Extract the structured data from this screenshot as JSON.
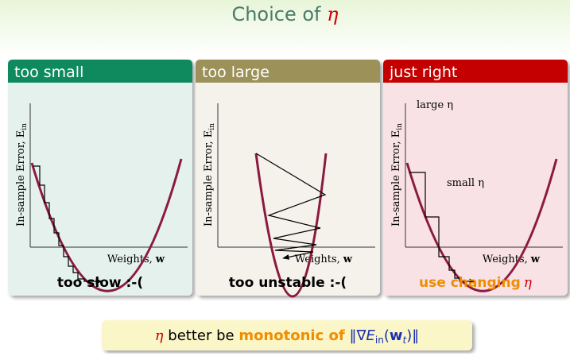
{
  "title": {
    "text": "Choice of",
    "symbol": "η"
  },
  "panels": [
    {
      "header": "too small",
      "y_label": "In-sample Error, E",
      "y_label_sub": "in",
      "x_label": "Weights,",
      "x_label_bold": "w",
      "caption": "too slow :-("
    },
    {
      "header": "too large",
      "y_label": "In-sample Error, E",
      "y_label_sub": "in",
      "x_label": "Weights,",
      "x_label_bold": "w",
      "caption": "too unstable :-("
    },
    {
      "header": "just right",
      "y_label": "In-sample Error, E",
      "y_label_sub": "in",
      "x_label": "Weights,",
      "x_label_bold": "w",
      "caption": "use changing",
      "caption_symbol": "η",
      "annotations": [
        "large η",
        "small η"
      ]
    }
  ],
  "footer": {
    "symbol": "η",
    "text": "better be",
    "highlight": "monotonic of",
    "norm_open": "‖∇",
    "E": "E",
    "E_sub": "in",
    "paren_open": "(",
    "w": "w",
    "w_sub": "t",
    "close": ")‖"
  }
}
